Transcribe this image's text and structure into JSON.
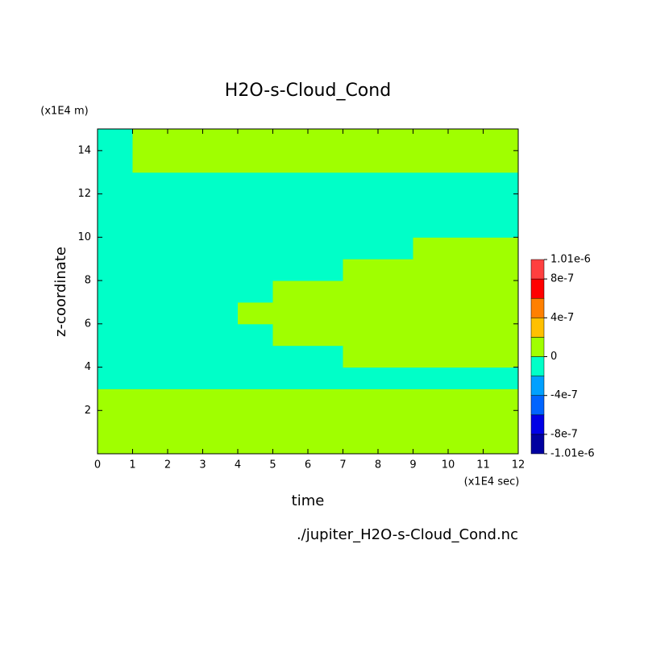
{
  "chart_data": {
    "type": "heatmap",
    "title": "H2O-s-Cloud_Cond",
    "y_unit": "(x1E4 m)",
    "x_unit": "(x1E4 sec)",
    "xlabel": "time",
    "ylabel": "z-coordinate",
    "footer": "./jupiter_H2O-s-Cloud_Cond.nc",
    "xlim": [
      0,
      12
    ],
    "ylim": [
      0,
      15
    ],
    "xticks": [
      0,
      1,
      2,
      3,
      4,
      5,
      6,
      7,
      8,
      9,
      10,
      11,
      12
    ],
    "yticks": [
      2,
      4,
      6,
      8,
      10,
      12,
      14
    ],
    "levels": [
      -1.01e-06,
      -8e-07,
      -6e-07,
      -4e-07,
      -2e-07,
      0,
      2e-07,
      4e-07,
      6e-07,
      8e-07,
      1.01e-06
    ],
    "colors": [
      "#0000a0",
      "#0000e6",
      "#0064ff",
      "#00a0ff",
      "#00ffc8",
      "#a0ff00",
      "#ffc000",
      "#ff8000",
      "#ff0000",
      "#ff4040"
    ],
    "cbar_ticks": [
      {
        "value": 1.01e-06,
        "label": "1.01e-6"
      },
      {
        "value": 8e-07,
        "label": "8e-7"
      },
      {
        "value": 4e-07,
        "label": "4e-7"
      },
      {
        "value": 0,
        "label": "0"
      },
      {
        "value": -4e-07,
        "label": "-4e-7"
      },
      {
        "value": -8e-07,
        "label": "-8e-7"
      },
      {
        "value": -1.01e-06,
        "label": "-1.01e-6"
      }
    ],
    "z": [
      [
        1e-07,
        1e-07,
        1e-07,
        1e-07,
        1e-07,
        1e-07,
        1e-07,
        1e-07,
        1e-07,
        1e-07,
        1e-07,
        1e-07
      ],
      [
        1e-07,
        1e-07,
        1e-07,
        1e-07,
        1e-07,
        1e-07,
        1e-07,
        1e-07,
        1e-07,
        1e-07,
        1e-07,
        1e-07
      ],
      [
        1e-07,
        1e-07,
        1e-07,
        1e-07,
        1e-07,
        1e-07,
        1e-07,
        1e-07,
        1e-07,
        1e-07,
        1e-07,
        1e-07
      ],
      [
        -1e-07,
        -1e-07,
        -1e-07,
        -1e-07,
        -1e-07,
        -1e-07,
        -1e-07,
        -1e-07,
        -1e-07,
        -1e-07,
        -1e-07,
        -1e-07
      ],
      [
        -1e-07,
        -1e-07,
        -1e-07,
        -1e-07,
        -1e-07,
        -1e-07,
        -1e-07,
        1e-07,
        1e-07,
        1e-07,
        1e-07,
        1e-07
      ],
      [
        -1e-07,
        -1e-07,
        -1e-07,
        -1e-07,
        -1e-07,
        1e-07,
        1e-07,
        1e-07,
        1e-07,
        1e-07,
        1e-07,
        1e-07
      ],
      [
        -1e-07,
        -1e-07,
        -1e-07,
        -1e-07,
        1e-07,
        1e-07,
        1e-07,
        1e-07,
        1e-07,
        1e-07,
        1e-07,
        1e-07
      ],
      [
        -1e-07,
        -1e-07,
        -1e-07,
        -1e-07,
        -1e-07,
        1e-07,
        1e-07,
        1e-07,
        1e-07,
        1e-07,
        1e-07,
        1e-07
      ],
      [
        -1e-07,
        -1e-07,
        -1e-07,
        -1e-07,
        -1e-07,
        -1e-07,
        -1e-07,
        1e-07,
        1e-07,
        1e-07,
        1e-07,
        1e-07
      ],
      [
        -1e-07,
        -1e-07,
        -1e-07,
        -1e-07,
        -1e-07,
        -1e-07,
        -1e-07,
        -1e-07,
        -1e-07,
        1e-07,
        1e-07,
        1e-07
      ],
      [
        -1e-07,
        -1e-07,
        -1e-07,
        -1e-07,
        -1e-07,
        -1e-07,
        -1e-07,
        -1e-07,
        -1e-07,
        -1e-07,
        -1e-07,
        -1e-07
      ],
      [
        -1e-07,
        -1e-07,
        -1e-07,
        -1e-07,
        -1e-07,
        -1e-07,
        -1e-07,
        -1e-07,
        -1e-07,
        -1e-07,
        -1e-07,
        -1e-07
      ],
      [
        -1e-07,
        -1e-07,
        -1e-07,
        -1e-07,
        -1e-07,
        -1e-07,
        -1e-07,
        -1e-07,
        -1e-07,
        -1e-07,
        -1e-07,
        -1e-07
      ],
      [
        -1e-07,
        1e-07,
        1e-07,
        1e-07,
        1e-07,
        1e-07,
        1e-07,
        1e-07,
        1e-07,
        1e-07,
        1e-07,
        1e-07
      ],
      [
        -1e-07,
        1e-07,
        1e-07,
        1e-07,
        1e-07,
        1e-07,
        1e-07,
        1e-07,
        1e-07,
        1e-07,
        1e-07,
        1e-07
      ]
    ]
  }
}
